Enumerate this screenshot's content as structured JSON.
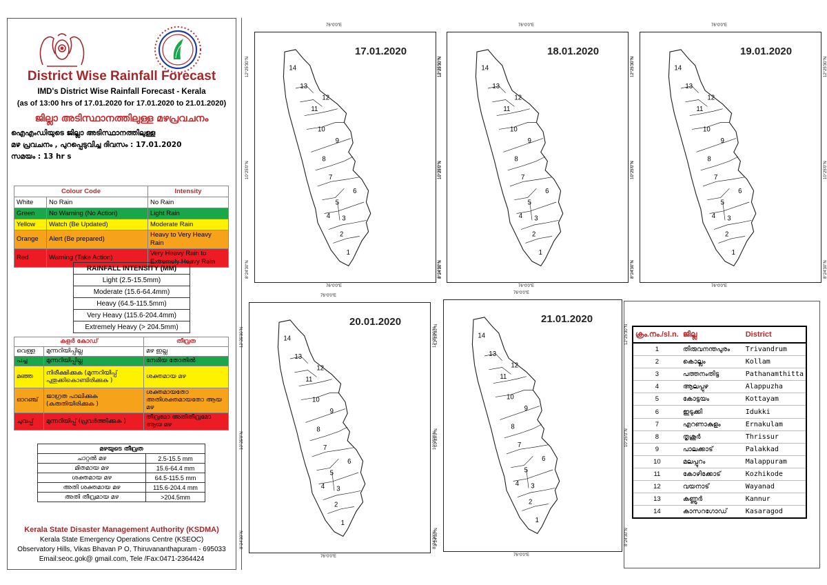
{
  "header": {
    "title": "District Wise Rainfall Forecast",
    "subtitle1": "IMD's District Wise Rainfall Forecast - Kerala",
    "subtitle2": "(as of 13:00 hrs of 17.01.2020  for 17.01.2020  to 21.01.2020)",
    "ml_title": "ജില്ലാ അടിസ്ഥാനത്തിലുള്ള മഴപ്രവചനം",
    "ml_line1": "ഐഎംഡിയുടെ ജില്ലാ    അടിസ്ഥാനത്തിലുള്ള",
    "ml_line2": "മഴ പ്രവചനം  , പുറപ്പെടുവിച്ച       ദിവസം : 17.01.2020",
    "ml_line3": "സമയം : 13  hr s"
  },
  "colour_code": {
    "header_code": "Colour Code",
    "header_intensity": "Intensity",
    "rows": [
      {
        "colour": "White",
        "code": "No Rain",
        "intensity": "No Rain"
      },
      {
        "colour": "Green",
        "code": "No Warning (No Action)",
        "intensity": "Light Rain"
      },
      {
        "colour": "Yellow",
        "code": "Watch (Be Updated)",
        "intensity": "Moderate Rain"
      },
      {
        "colour": "Orange",
        "code": "Alert (Be prepared)",
        "intensity": "Heavy to Very Heavy Rain"
      },
      {
        "colour": "Red",
        "code": "Warning (Take Action)",
        "intensity": "Very Heavy Rain to Extremely Heavy Rain"
      }
    ]
  },
  "rainfall_intensity": {
    "title": "RAINFALL INTENSITY (MM)",
    "rows": [
      "Light (2.5-15.5mm)",
      "Moderate (15.6-64.4mm)",
      "Heavy (64.5-115.5mm)",
      "Very Heavy (115.6-204.4mm)",
      "Extremely Heavy (> 204.5mm)"
    ]
  },
  "ml_colour_code": {
    "header_code": "കളർ കോഡ്",
    "header_intensity": "തീവ്രത",
    "rows": [
      {
        "colour": "വെള്ള",
        "code": "മുന്നറിയിപ്പില്ല",
        "intensity": "മഴ ഇല്ല"
      },
      {
        "colour": "പച്ച",
        "code": "മുന്നറിയിപ്പില്ല",
        "intensity": "നേരിയ തോതിൽ"
      },
      {
        "colour": "മഞ്ഞ",
        "code": "നിരീക്ഷിക്കുക (മുന്നറിയിപ്പ് പുതുക്കികൊണ്ടിരിക്കുക )",
        "intensity": "ശക്തമായ മഴ"
      },
      {
        "colour": "ഓറഞ്ച്",
        "code": "ജാഗ്രത പാലിക്കുക (കരുതിയിരിക്കുക )",
        "intensity": "ശക്തമായതോ അതിശക്തമായതോ ആയ മഴ"
      },
      {
        "colour": "ചുവപ്പ്",
        "code": "മുന്നറിയിപ്പ് (പ്രവർത്തിക്കുക )",
        "intensity": "തീവ്രമോ അതിതീവ്രമോ ആയ മഴ"
      }
    ]
  },
  "ml_rainfall_intensity": {
    "title": "മഴയുടെ തീവ്രത",
    "rows": [
      {
        "label": "ചാറ്റൽ മഴ",
        "value": "2.5-15.5 mm"
      },
      {
        "label": "മിതമായ മഴ",
        "value": "15.6-64.4 mm"
      },
      {
        "label": "ശക്തമായ മഴ",
        "value": "64.5-115.5 mm"
      },
      {
        "label": "അതി ശക്തമായ മഴ",
        "value": "115.6-204.4 mm"
      },
      {
        "label": "അതി തീവ്രമായ മഴ",
        "value": ">204.5mm"
      }
    ]
  },
  "footer": {
    "org": "Kerala State Disaster Management Authority (KSDMA)",
    "line2": "Kerala State Emergency Operations Centre (KSEOC)",
    "line3": "Observatory Hills, Vikas Bhavan P O, Thiruvananthapuram - 695033",
    "line4": "Email:seoc.gok@ gmail.com, Tele /Fax:0471-2364424"
  },
  "maps": [
    {
      "date": "17.01.2020"
    },
    {
      "date": "18.01.2020"
    },
    {
      "date": "19.01.2020"
    },
    {
      "date": "20.01.2020"
    },
    {
      "date": "21.01.2020"
    }
  ],
  "map_coords": {
    "lon": "76°0'0\"E",
    "lat_north": "12°25'30\"N",
    "lat_mid": "10°25'0\"N",
    "lat_south": "8°24'30\"N"
  },
  "district_numbers": [
    "1",
    "2",
    "3",
    "4",
    "5",
    "6",
    "7",
    "8",
    "9",
    "10",
    "11",
    "12",
    "13",
    "14"
  ],
  "district_table": {
    "headers": {
      "no": "ക്രം.നം./sl.n.",
      "ml": "ജില്ല",
      "en": "District"
    },
    "rows": [
      {
        "no": "1",
        "ml": "തിരുവനന്തപുരം",
        "en": "Trivandrum"
      },
      {
        "no": "2",
        "ml": "കൊല്ലം",
        "en": "Kollam"
      },
      {
        "no": "3",
        "ml": "പത്തനംതിട്ട",
        "en": "Pathanamthitta"
      },
      {
        "no": "4",
        "ml": "ആലപ്പുഴ",
        "en": "Alappuzha"
      },
      {
        "no": "5",
        "ml": "കോട്ടയം",
        "en": "Kottayam"
      },
      {
        "no": "6",
        "ml": "ഇടുക്കി",
        "en": "Idukki"
      },
      {
        "no": "7",
        "ml": "എറണാകുളം",
        "en": "Ernakulam"
      },
      {
        "no": "8",
        "ml": "തൃശൂർ",
        "en": "Thrissur"
      },
      {
        "no": "9",
        "ml": "പാലക്കാട്",
        "en": "Palakkad"
      },
      {
        "no": "10",
        "ml": "മലപ്പുറം",
        "en": "Malappuram"
      },
      {
        "no": "11",
        "ml": "കോഴിക്കോട്",
        "en": "Kozhikode"
      },
      {
        "no": "12",
        "ml": "വയനാട്",
        "en": "Wayanad"
      },
      {
        "no": "13",
        "ml": "കണ്ണൂർ",
        "en": "Kannur"
      },
      {
        "no": "14",
        "ml": "കാസറഗോഡ്",
        "en": "Kasaragod"
      }
    ]
  },
  "colors": {
    "white": "#ffffff",
    "green": "#1aa64b",
    "yellow": "#fff200",
    "orange": "#f7a21b",
    "red": "#ed1c24",
    "title_red": "#a4282a",
    "map_fill": "#ffffff",
    "map_stroke": "#222222"
  }
}
